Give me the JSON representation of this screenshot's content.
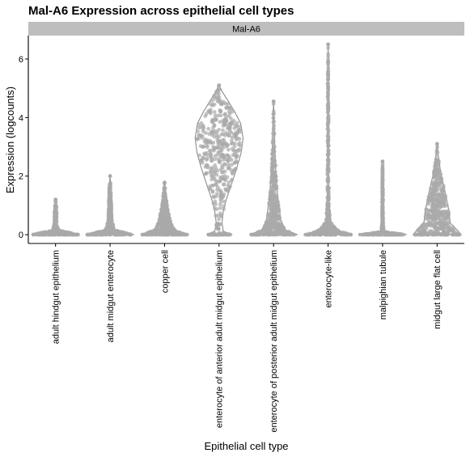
{
  "chart_data": {
    "type": "violin",
    "title": "Mal-A6 Expression across epithelial cell types",
    "facet_label": "Mal-A6",
    "xlabel": "Epithelial cell type",
    "ylabel": "Expression (logcounts)",
    "ylim": [
      -0.3,
      6.8
    ],
    "yticks": [
      0,
      2,
      4,
      6
    ],
    "grid": false,
    "point_color": "#A9A9A9",
    "categories": [
      "adult hindgut epithelium",
      "adult midgut enterocyte",
      "copper cell",
      "enterocyte of anterior adult midgut epithelium",
      "enterocyte of posterior adult midgut epithelium",
      "enterocyte-like",
      "malpighian tubule",
      "midgut large flat cell"
    ],
    "series": [
      {
        "category": "adult hindgut epithelium",
        "max": 1.2,
        "density": [
          [
            0,
            1.0
          ],
          [
            0.15,
            0.12
          ],
          [
            0.4,
            0.05
          ],
          [
            0.75,
            0.05
          ],
          [
            1.0,
            0.03
          ],
          [
            1.2,
            0.0
          ]
        ]
      },
      {
        "category": "adult midgut enterocyte",
        "max": 2.0,
        "density": [
          [
            0,
            1.0
          ],
          [
            0.15,
            0.2
          ],
          [
            0.5,
            0.08
          ],
          [
            1.0,
            0.06
          ],
          [
            1.5,
            0.04
          ],
          [
            2.0,
            0.0
          ]
        ]
      },
      {
        "category": "copper cell",
        "max": 1.78,
        "density": [
          [
            0,
            1.0
          ],
          [
            0.15,
            0.45
          ],
          [
            0.35,
            0.3
          ],
          [
            0.6,
            0.22
          ],
          [
            1.0,
            0.12
          ],
          [
            1.4,
            0.06
          ],
          [
            1.78,
            0.0
          ]
        ]
      },
      {
        "category": "enterocyte of anterior adult midgut epithelium",
        "max": 5.1,
        "density": [
          [
            0,
            0.5
          ],
          [
            0.12,
            0.18
          ],
          [
            0.4,
            0.12
          ],
          [
            0.8,
            0.18
          ],
          [
            1.2,
            0.3
          ],
          [
            1.8,
            0.55
          ],
          [
            2.3,
            0.75
          ],
          [
            2.8,
            0.92
          ],
          [
            3.3,
            1.0
          ],
          [
            3.8,
            0.9
          ],
          [
            4.2,
            0.65
          ],
          [
            4.6,
            0.35
          ],
          [
            4.9,
            0.12
          ],
          [
            5.1,
            0.0
          ]
        ]
      },
      {
        "category": "enterocyte of posterior adult midgut epithelium",
        "max": 4.55,
        "density": [
          [
            0,
            1.0
          ],
          [
            0.15,
            0.5
          ],
          [
            0.5,
            0.3
          ],
          [
            1.0,
            0.22
          ],
          [
            1.5,
            0.15
          ],
          [
            2.2,
            0.09
          ],
          [
            3.0,
            0.05
          ],
          [
            3.8,
            0.025
          ],
          [
            4.55,
            0.0
          ]
        ]
      },
      {
        "category": "enterocyte-like",
        "max": 6.5,
        "density": [
          [
            0,
            1.0
          ],
          [
            0.1,
            0.55
          ],
          [
            0.25,
            0.28
          ],
          [
            0.45,
            0.1
          ],
          [
            1.0,
            0.04
          ],
          [
            2.0,
            0.03
          ],
          [
            3.5,
            0.025
          ],
          [
            5.0,
            0.02
          ],
          [
            6.5,
            0.0
          ]
        ]
      },
      {
        "category": "malpighian tubule",
        "max": 2.5,
        "density": [
          [
            0,
            1.0
          ],
          [
            0.1,
            0.05
          ],
          [
            0.5,
            0.02
          ],
          [
            1.2,
            0.02
          ],
          [
            2.0,
            0.01
          ],
          [
            2.5,
            0.0
          ]
        ]
      },
      {
        "category": "midgut large flat cell",
        "max": 3.1,
        "density": [
          [
            0,
            1.0
          ],
          [
            0.15,
            0.85
          ],
          [
            0.4,
            0.55
          ],
          [
            0.8,
            0.5
          ],
          [
            1.2,
            0.4
          ],
          [
            1.6,
            0.3
          ],
          [
            2.0,
            0.18
          ],
          [
            2.5,
            0.08
          ],
          [
            3.1,
            0.0
          ]
        ]
      }
    ]
  }
}
